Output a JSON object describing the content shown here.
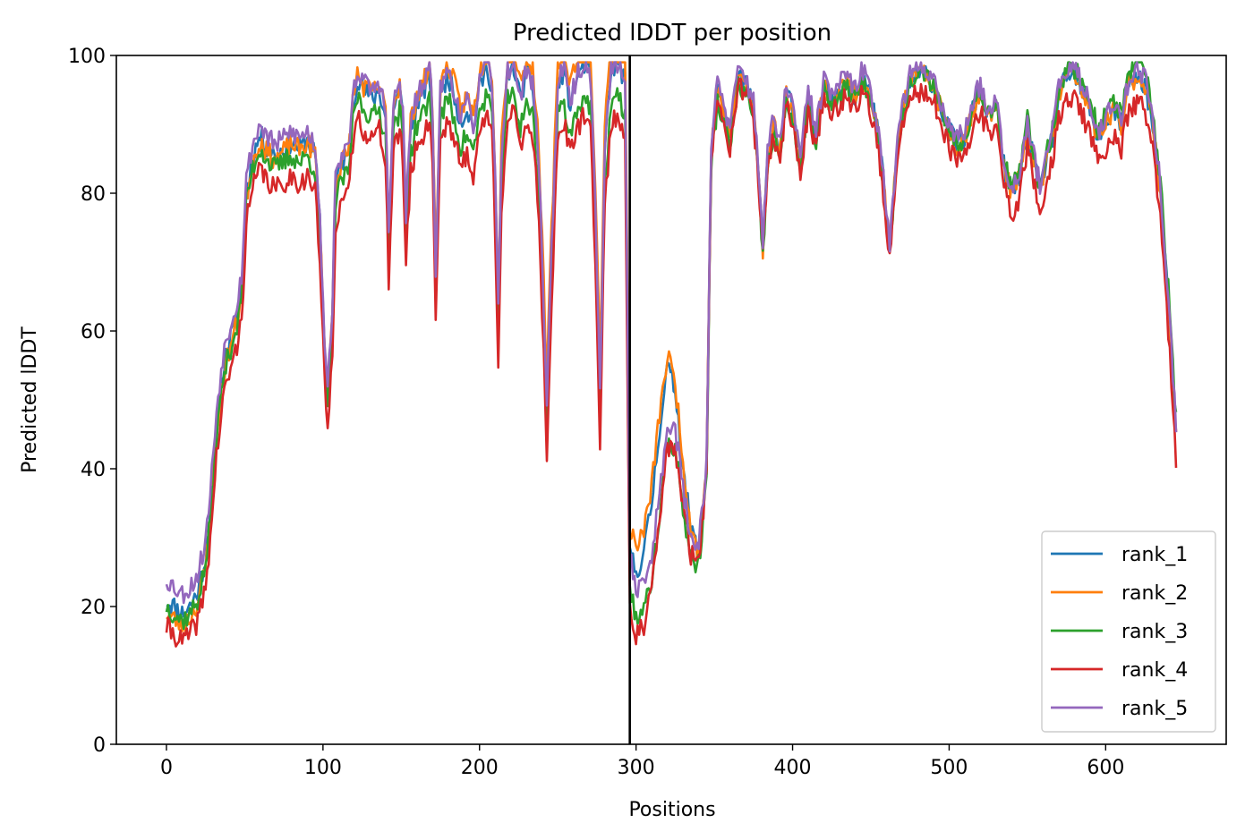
{
  "chart_data": {
    "type": "line",
    "title": "Predicted lDDT per position",
    "xlabel": "Positions",
    "ylabel": "Predicted lDDT",
    "xlim": [
      -32,
      677
    ],
    "ylim": [
      0,
      100
    ],
    "xticks": [
      0,
      100,
      200,
      300,
      400,
      500,
      600
    ],
    "yticks": [
      0,
      20,
      40,
      60,
      80,
      100
    ],
    "grid": false,
    "legend_position": "lower right",
    "vertical_line_x": 296,
    "n_positions": 645,
    "base_profile": [
      [
        0,
        21
      ],
      [
        5,
        20
      ],
      [
        10,
        19
      ],
      [
        15,
        20
      ],
      [
        20,
        22
      ],
      [
        25,
        27
      ],
      [
        28,
        34
      ],
      [
        32,
        46
      ],
      [
        36,
        54
      ],
      [
        40,
        58
      ],
      [
        45,
        62
      ],
      [
        48,
        66
      ],
      [
        51,
        80
      ],
      [
        55,
        85
      ],
      [
        60,
        88
      ],
      [
        65,
        86
      ],
      [
        70,
        85
      ],
      [
        75,
        86
      ],
      [
        80,
        87
      ],
      [
        85,
        86
      ],
      [
        90,
        87
      ],
      [
        95,
        85
      ],
      [
        98,
        75
      ],
      [
        101,
        57
      ],
      [
        103,
        50
      ],
      [
        106,
        62
      ],
      [
        108,
        80
      ],
      [
        112,
        84
      ],
      [
        116,
        84
      ],
      [
        119,
        92
      ],
      [
        122,
        96
      ],
      [
        126,
        94
      ],
      [
        132,
        93
      ],
      [
        136,
        94
      ],
      [
        140,
        90
      ],
      [
        142,
        72
      ],
      [
        145,
        91
      ],
      [
        149,
        94
      ],
      [
        151,
        90
      ],
      [
        153,
        75
      ],
      [
        156,
        88
      ],
      [
        160,
        92
      ],
      [
        165,
        94
      ],
      [
        168,
        96
      ],
      [
        170,
        90
      ],
      [
        172,
        67
      ],
      [
        175,
        93
      ],
      [
        180,
        96
      ],
      [
        185,
        92
      ],
      [
        188,
        89
      ],
      [
        192,
        91
      ],
      [
        196,
        88
      ],
      [
        200,
        94
      ],
      [
        205,
        97
      ],
      [
        208,
        94
      ],
      [
        210,
        80
      ],
      [
        212,
        61
      ],
      [
        214,
        84
      ],
      [
        218,
        96
      ],
      [
        222,
        97
      ],
      [
        226,
        92
      ],
      [
        230,
        96
      ],
      [
        234,
        94
      ],
      [
        238,
        82
      ],
      [
        241,
        62
      ],
      [
        243,
        48
      ],
      [
        246,
        70
      ],
      [
        250,
        94
      ],
      [
        254,
        96
      ],
      [
        258,
        91
      ],
      [
        262,
        95
      ],
      [
        267,
        97
      ],
      [
        271,
        95
      ],
      [
        274,
        76
      ],
      [
        277,
        50
      ],
      [
        280,
        84
      ],
      [
        284,
        96
      ],
      [
        289,
        97
      ],
      [
        293,
        94
      ],
      [
        296,
        26
      ],
      [
        300,
        22
      ],
      [
        305,
        24
      ],
      [
        310,
        30
      ],
      [
        315,
        40
      ],
      [
        320,
        50
      ],
      [
        325,
        48
      ],
      [
        330,
        38
      ],
      [
        335,
        30
      ],
      [
        340,
        28
      ],
      [
        345,
        40
      ],
      [
        348,
        86
      ],
      [
        352,
        95
      ],
      [
        356,
        92
      ],
      [
        360,
        88
      ],
      [
        365,
        97
      ],
      [
        370,
        96
      ],
      [
        375,
        92
      ],
      [
        378,
        84
      ],
      [
        381,
        72
      ],
      [
        384,
        85
      ],
      [
        388,
        90
      ],
      [
        392,
        86
      ],
      [
        396,
        95
      ],
      [
        400,
        92
      ],
      [
        405,
        84
      ],
      [
        410,
        94
      ],
      [
        415,
        88
      ],
      [
        420,
        96
      ],
      [
        425,
        93
      ],
      [
        430,
        95
      ],
      [
        435,
        96
      ],
      [
        440,
        94
      ],
      [
        445,
        97
      ],
      [
        450,
        94
      ],
      [
        455,
        88
      ],
      [
        458,
        82
      ],
      [
        462,
        72
      ],
      [
        466,
        84
      ],
      [
        470,
        92
      ],
      [
        475,
        96
      ],
      [
        480,
        97
      ],
      [
        485,
        97
      ],
      [
        490,
        96
      ],
      [
        495,
        92
      ],
      [
        500,
        89
      ],
      [
        505,
        87
      ],
      [
        510,
        88
      ],
      [
        515,
        92
      ],
      [
        520,
        95
      ],
      [
        525,
        91
      ],
      [
        530,
        93
      ],
      [
        535,
        84
      ],
      [
        540,
        80
      ],
      [
        545,
        82
      ],
      [
        550,
        90
      ],
      [
        553,
        86
      ],
      [
        558,
        80
      ],
      [
        562,
        85
      ],
      [
        566,
        88
      ],
      [
        570,
        94
      ],
      [
        575,
        97
      ],
      [
        580,
        97
      ],
      [
        585,
        95
      ],
      [
        590,
        92
      ],
      [
        595,
        88
      ],
      [
        600,
        90
      ],
      [
        605,
        92
      ],
      [
        610,
        90
      ],
      [
        615,
        96
      ],
      [
        620,
        97
      ],
      [
        625,
        96
      ],
      [
        630,
        90
      ],
      [
        635,
        80
      ],
      [
        640,
        64
      ],
      [
        645,
        45
      ]
    ],
    "series": [
      {
        "name": "rank_1",
        "color": "#1f77b4",
        "seed": 11,
        "offsets": [
          [
            0,
            0
          ],
          [
            296,
            2
          ],
          [
            315,
            6
          ],
          [
            340,
            0
          ],
          [
            645,
            0
          ]
        ]
      },
      {
        "name": "rank_2",
        "color": "#ff7f0e",
        "seed": 23,
        "offsets": [
          [
            0,
            -2
          ],
          [
            296,
            6
          ],
          [
            315,
            8
          ],
          [
            340,
            0
          ],
          [
            645,
            0
          ]
        ]
      },
      {
        "name": "rank_3",
        "color": "#2ca02c",
        "seed": 37,
        "offsets": [
          [
            0,
            -1
          ],
          [
            296,
            -3
          ],
          [
            315,
            -7
          ],
          [
            340,
            -2
          ],
          [
            645,
            2
          ]
        ]
      },
      {
        "name": "rank_4",
        "color": "#d62728",
        "seed": 41,
        "offsets": [
          [
            0,
            -4
          ],
          [
            296,
            -6
          ],
          [
            315,
            -8
          ],
          [
            340,
            -1
          ],
          [
            645,
            -4
          ]
        ]
      },
      {
        "name": "rank_5",
        "color": "#9467bd",
        "seed": 53,
        "offsets": [
          [
            0,
            3
          ],
          [
            60,
            2
          ],
          [
            296,
            2
          ],
          [
            315,
            -4
          ],
          [
            340,
            1
          ],
          [
            645,
            1
          ]
        ]
      }
    ]
  }
}
